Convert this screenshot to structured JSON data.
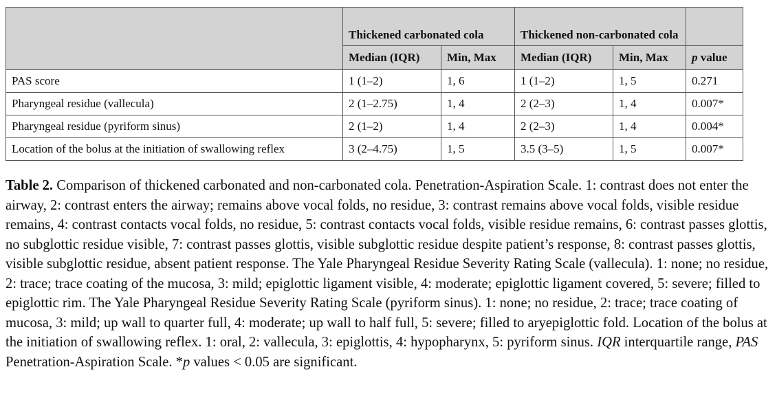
{
  "table": {
    "group_headers": [
      "",
      "Thickened carbonated cola",
      "Thickened non-carbonated cola",
      ""
    ],
    "sub_headers": [
      "",
      "Median (IQR)",
      "Min, Max",
      "Median (IQR)",
      "Min, Max"
    ],
    "pvalue_header_italic": "p",
    "pvalue_header_rest": " value",
    "rows": [
      [
        "PAS score",
        "1 (1–2)",
        "1, 6",
        "1 (1–2)",
        "1, 5",
        "0.271"
      ],
      [
        "Pharyngeal residue (vallecula)",
        "2 (1–2.75)",
        "1, 4",
        "2 (2–3)",
        "1, 4",
        "0.007*"
      ],
      [
        "Pharyngeal residue (pyriform sinus)",
        "2 (1–2)",
        "1, 4",
        "2 (2–3)",
        "1, 4",
        "0.004*"
      ],
      [
        "Location of the bolus at the initiation of swallowing reflex",
        "3 (2–4.75)",
        "1, 5",
        "3.5 (3–5)",
        "1, 5",
        "0.007*"
      ]
    ]
  },
  "caption": {
    "label": "Table 2.",
    "text1": " Comparison of thickened carbonated and non-carbonated cola. Penetration-Aspiration Scale. 1: contrast does not enter the airway, 2: contrast enters the airway; remains above vocal folds, no residue, 3: contrast remains above vocal folds, visible residue remains, 4: contrast contacts vocal folds, no residue, 5: contrast contacts vocal folds, visible residue remains, 6: contrast passes glottis, no subglottic residue visible, 7: contrast passes glottis, visible subglottic residue despite patient’s response, 8: contrast passes glottis, visible subglottic residue, absent patient response. The Yale Pharyngeal Residue Severity Rating Scale (vallecula). 1: none; no residue, 2: trace; trace coating of the mucosa, 3: mild; epiglottic ligament visible, 4: moderate; epiglottic ligament covered, 5: severe; filled to epiglottic rim. The Yale Pharyngeal Residue Severity Rating Scale (pyriform sinus). 1: none; no residue, 2: trace; trace coating of mucosa, 3: mild; up wall to quarter full, 4: moderate; up wall to half full, 5: severe; filled to aryepiglottic fold. Location of the bolus at the initiation of swallowing reflex. 1: oral, 2: vallecula, 3: epiglottis, 4: hypopharynx, 5: pyriform sinus. ",
    "abbr1": "IQR",
    "text2": " interquartile range, ",
    "abbr2": "PAS",
    "text3": " Penetration-Aspiration Scale. *",
    "abbr3": "p",
    "text4": " values < 0.05 are significant."
  }
}
